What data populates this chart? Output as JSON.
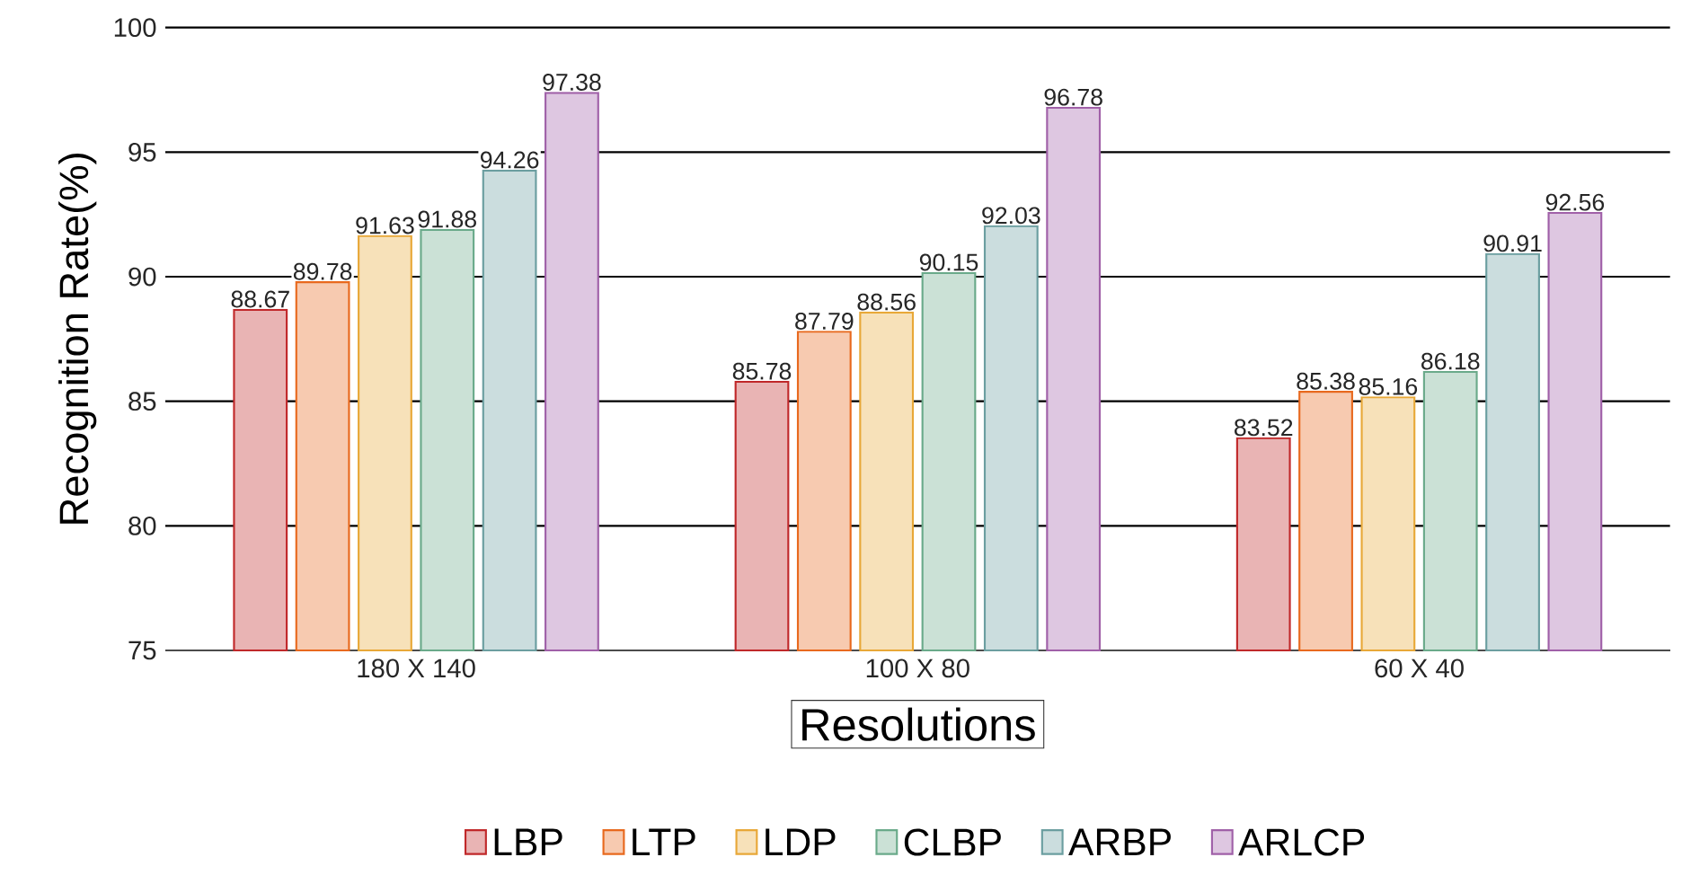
{
  "chart_data": {
    "type": "bar",
    "xlabel": "Resolutions",
    "ylabel": "Recognition Rate(%)",
    "categories": [
      "180 X 140",
      "100 X 80",
      "60 X 40"
    ],
    "series": [
      {
        "name": "LBP",
        "color": "#c0282a",
        "values": [
          88.67,
          85.78,
          83.52
        ],
        "value_labels": [
          "88.67",
          "85.78",
          "83.52"
        ]
      },
      {
        "name": "LTP",
        "color": "#e8691e",
        "values": [
          89.78,
          87.79,
          85.38
        ],
        "value_labels": [
          "89.78",
          "87.79",
          "85.38"
        ]
      },
      {
        "name": "LDP",
        "color": "#e8a838",
        "values": [
          91.63,
          88.56,
          85.16
        ],
        "value_labels": [
          "91.63",
          "88.56",
          "85.16"
        ]
      },
      {
        "name": "CLBP",
        "color": "#6aaa8a",
        "values": [
          91.88,
          90.15,
          86.18
        ],
        "value_labels": [
          "91.88",
          "90.15",
          "86.18"
        ]
      },
      {
        "name": "ARBP",
        "color": "#6b9ea0",
        "values": [
          94.26,
          92.03,
          90.91
        ],
        "value_labels": [
          "94.26",
          "92.03",
          "90.91"
        ]
      },
      {
        "name": "ARLCP",
        "color": "#a060a8",
        "values": [
          97.38,
          96.78,
          92.56
        ],
        "value_labels": [
          "97.38",
          "96.78",
          "92.56"
        ]
      }
    ],
    "ylim": [
      75,
      100
    ],
    "yticks": [
      75,
      80,
      85,
      90,
      95,
      100
    ],
    "grid": "y",
    "legend": "bottom"
  }
}
